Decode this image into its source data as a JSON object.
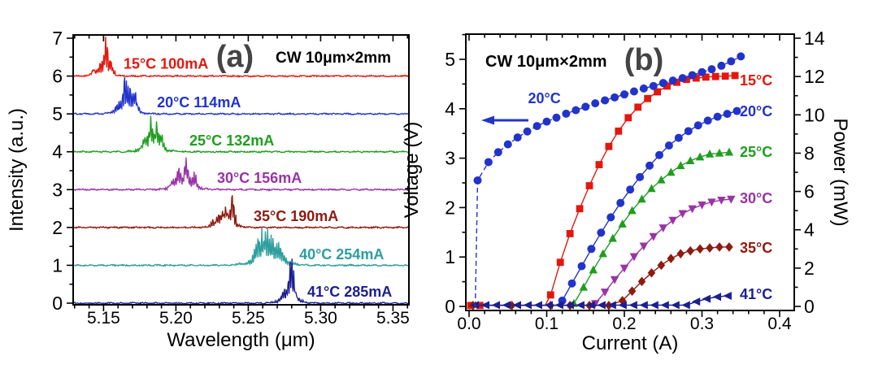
{
  "chart_data": [
    {
      "id": "a",
      "type": "line",
      "tag": "(a)",
      "annotation": "CW  10μm×2mm",
      "xlabel": "Wavelength (μm)",
      "ylabel": "Intensity (a.u.)",
      "xlim": [
        5.129,
        5.361
      ],
      "ylim": [
        0,
        7.08
      ],
      "xticks": [
        5.15,
        5.2,
        5.25,
        5.3,
        5.35
      ],
      "xtick_labels": [
        "5.15",
        "5.20",
        "5.25",
        "5.30",
        "5.35"
      ],
      "yticks": [
        0,
        1,
        2,
        3,
        4,
        5,
        6,
        7
      ],
      "x_minor_step": 0.01,
      "y_minor_step": 0.5,
      "grid": false,
      "series": [
        {
          "name": "15C-100mA",
          "label": "15°C  100mA",
          "color": "#e3170d",
          "offset": 6,
          "label_pos": [
            5.1638,
            6.2
          ],
          "peaks": [
            {
              "c": 5.1515,
              "w": 0.0012,
              "h": 1.02
            },
            {
              "c": 5.1478,
              "w": 0.0017,
              "h": 0.3
            },
            {
              "c": 5.143,
              "w": 0.0014,
              "h": 0.16
            },
            {
              "c": 5.155,
              "w": 0.0013,
              "h": 0.38
            }
          ],
          "pedestal": {
            "c": 5.1512,
            "w": 0.0055,
            "h": 0.14
          }
        },
        {
          "name": "20C-114mA",
          "label": "20°C  114mA",
          "color": "#2233cc",
          "offset": 5,
          "label_pos": [
            5.1869,
            5.17
          ],
          "peaks": [
            {
              "c": 5.1645,
              "w": 0.0014,
              "h": 0.97
            },
            {
              "c": 5.1685,
              "w": 0.0017,
              "h": 0.62
            },
            {
              "c": 5.1718,
              "w": 0.0015,
              "h": 0.45
            },
            {
              "c": 5.1595,
              "w": 0.0016,
              "h": 0.22
            }
          ],
          "pedestal": {
            "c": 5.166,
            "w": 0.0075,
            "h": 0.18
          }
        },
        {
          "name": "25C-132mA",
          "label": "25°C  132mA",
          "color": "#1e9e1e",
          "offset": 4,
          "label_pos": [
            5.2093,
            4.17
          ],
          "peaks": [
            {
              "c": 5.1825,
              "w": 0.0014,
              "h": 0.95
            },
            {
              "c": 5.187,
              "w": 0.0017,
              "h": 0.62
            },
            {
              "c": 5.178,
              "w": 0.0016,
              "h": 0.28
            },
            {
              "c": 5.1902,
              "w": 0.0014,
              "h": 0.3
            }
          ],
          "pedestal": {
            "c": 5.184,
            "w": 0.0075,
            "h": 0.2
          }
        },
        {
          "name": "30C-156mA",
          "label": "30°C 156mA",
          "color": "#9933a6",
          "offset": 3,
          "label_pos": [
            5.2284,
            3.18
          ],
          "peaks": [
            {
              "c": 5.207,
              "w": 0.0014,
              "h": 0.85
            },
            {
              "c": 5.2018,
              "w": 0.0019,
              "h": 0.5
            },
            {
              "c": 5.2125,
              "w": 0.0016,
              "h": 0.38
            },
            {
              "c": 5.1975,
              "w": 0.0016,
              "h": 0.2
            }
          ],
          "pedestal": {
            "c": 5.2065,
            "w": 0.009,
            "h": 0.17
          }
        },
        {
          "name": "35C-190mA",
          "label": "35°C  190mA",
          "color": "#8e1a10",
          "offset": 2,
          "label_pos": [
            5.2537,
            2.17
          ],
          "peaks": [
            {
              "c": 5.2388,
              "w": 0.0012,
              "h": 0.85
            },
            {
              "c": 5.234,
              "w": 0.0015,
              "h": 0.55
            },
            {
              "c": 5.2298,
              "w": 0.0016,
              "h": 0.32
            },
            {
              "c": 5.2258,
              "w": 0.0015,
              "h": 0.18
            }
          ],
          "pedestal": {
            "c": 5.2355,
            "w": 0.007,
            "h": 0.15
          }
        },
        {
          "name": "40C-254mA",
          "label": "40°C  254mA",
          "color": "#2e9e9e",
          "offset": 1,
          "label_pos": [
            5.2852,
            1.16
          ],
          "peaks": [
            {
              "c": 5.2618,
              "w": 0.0021,
              "h": 0.9
            },
            {
              "c": 5.2568,
              "w": 0.0021,
              "h": 0.65
            },
            {
              "c": 5.267,
              "w": 0.0023,
              "h": 0.6
            },
            {
              "c": 5.2722,
              "w": 0.0021,
              "h": 0.35
            }
          ],
          "pedestal": {
            "c": 5.2635,
            "w": 0.0115,
            "h": 0.28
          }
        },
        {
          "name": "41C-285mA",
          "label": "41°C  285mA",
          "color": "#1c1f8f",
          "offset": 0,
          "label_pos": [
            5.2908,
            0.17
          ],
          "peaks": [
            {
              "c": 5.2788,
              "w": 0.0012,
              "h": 0.92
            },
            {
              "c": 5.2802,
              "w": 0.0012,
              "h": 0.7
            },
            {
              "c": 5.2748,
              "w": 0.0016,
              "h": 0.38
            },
            {
              "c": 5.2822,
              "w": 0.0016,
              "h": 0.3
            }
          ],
          "pedestal": {
            "c": 5.2785,
            "w": 0.007,
            "h": 0.18
          }
        }
      ]
    },
    {
      "id": "b",
      "type": "scatter-line",
      "tag": "(b)",
      "annotation": "CW  10μm×2mm",
      "xlabel": "Current (A)",
      "ylabel_left": "Voltage (V)",
      "ylabel_right": "Power (mW)",
      "xlim": [
        -0.004,
        0.419
      ],
      "xticks": [
        0,
        0.1,
        0.2,
        0.3,
        0.4
      ],
      "xtick_labels": [
        "0.0",
        "0.1",
        "0.2",
        "0.3",
        "0.4"
      ],
      "x_minor_step": 0.02,
      "ylim_left": [
        -0.08,
        5.51
      ],
      "yticks_left": [
        0,
        1,
        2,
        3,
        4,
        5
      ],
      "y_left_minor_step": 0.5,
      "ylim_right": [
        -0.2,
        14.2
      ],
      "yticks_right": [
        0,
        2,
        4,
        6,
        8,
        10,
        12,
        14
      ],
      "y_right_minor_step": 1,
      "voltage_series": {
        "name": "20C-voltage",
        "axis": "left",
        "color": "#2233cc",
        "marker": "circle",
        "dashed": true,
        "x": [
          0.008,
          0.011,
          0.025,
          0.0375,
          0.05,
          0.0625,
          0.075,
          0.0875,
          0.1,
          0.1125,
          0.125,
          0.1375,
          0.15,
          0.1625,
          0.175,
          0.1875,
          0.2,
          0.2125,
          0.225,
          0.2375,
          0.25,
          0.2625,
          0.275,
          0.2875,
          0.3,
          0.3125,
          0.325,
          0.3375,
          0.35
        ],
        "y": [
          0.0,
          2.55,
          2.92,
          3.12,
          3.28,
          3.42,
          3.54,
          3.65,
          3.74,
          3.82,
          3.9,
          3.97,
          4.04,
          4.11,
          4.17,
          4.23,
          4.29,
          4.35,
          4.41,
          4.46,
          4.52,
          4.57,
          4.62,
          4.68,
          4.74,
          4.8,
          4.87,
          4.96,
          5.06
        ],
        "label": {
          "text": "20°C",
          "x": 0.097,
          "v": 4.11
        },
        "arrow": {
          "x_tail": 0.0764,
          "x_tip": 0.0157,
          "v": 3.766
        }
      },
      "power_series": [
        {
          "name": "15C",
          "color": "#e3170d",
          "marker": "square",
          "marker_hide": [
            2,
            3,
            4
          ],
          "x": [
            0.002,
            0.014,
            0.05,
            0.08,
            0.098,
            0.105,
            0.1175,
            0.13,
            0.1425,
            0.155,
            0.1675,
            0.18,
            0.1925,
            0.205,
            0.2175,
            0.23,
            0.2425,
            0.255,
            0.2675,
            0.28,
            0.2925,
            0.305,
            0.3175,
            0.33,
            0.3425
          ],
          "y": [
            0.05,
            0.05,
            0.05,
            0.05,
            0.05,
            0.6,
            2.3,
            3.8,
            5.1,
            6.3,
            7.4,
            8.35,
            9.15,
            9.85,
            10.4,
            10.85,
            11.2,
            11.5,
            11.7,
            11.85,
            11.92,
            11.97,
            12.0,
            12.02,
            12.05
          ],
          "label": {
            "text": "15°C",
            "x": 0.3487,
            "p": 11.54
          }
        },
        {
          "name": "20C",
          "color": "#2233cc",
          "marker": "circle",
          "x": [
            0.12,
            0.1325,
            0.145,
            0.1575,
            0.17,
            0.1825,
            0.195,
            0.2075,
            0.22,
            0.2325,
            0.245,
            0.2575,
            0.27,
            0.2825,
            0.295,
            0.3075,
            0.32,
            0.3325,
            0.345
          ],
          "y": [
            0.3,
            1.2,
            2.1,
            3.0,
            3.85,
            4.65,
            5.4,
            6.1,
            6.75,
            7.35,
            7.9,
            8.4,
            8.8,
            9.15,
            9.45,
            9.7,
            9.9,
            10.05,
            10.2
          ],
          "label": {
            "text": "20°C",
            "x": 0.3487,
            "p": 9.93
          }
        },
        {
          "name": "25C",
          "color": "#1e9e1e",
          "marker": "triangle-up",
          "x": [
            0.135,
            0.1475,
            0.16,
            0.1725,
            0.185,
            0.1975,
            0.21,
            0.2225,
            0.235,
            0.2475,
            0.26,
            0.2725,
            0.285,
            0.2975,
            0.31,
            0.3225,
            0.335
          ],
          "y": [
            0.15,
            1.0,
            1.9,
            2.75,
            3.55,
            4.3,
            5.0,
            5.6,
            6.15,
            6.6,
            7.0,
            7.35,
            7.6,
            7.8,
            7.95,
            8.0,
            8.05
          ],
          "label": {
            "text": "25°C",
            "x": 0.3487,
            "p": 7.81
          }
        },
        {
          "name": "30C",
          "color": "#9933a6",
          "marker": "triangle-down",
          "x": [
            0.1625,
            0.175,
            0.1875,
            0.2,
            0.2125,
            0.225,
            0.2375,
            0.25,
            0.2625,
            0.275,
            0.2875,
            0.3,
            0.3125,
            0.325,
            0.3375
          ],
          "y": [
            0.15,
            0.75,
            1.4,
            2.0,
            2.6,
            3.15,
            3.65,
            4.1,
            4.5,
            4.85,
            5.1,
            5.3,
            5.45,
            5.55,
            5.6
          ],
          "label": {
            "text": "30°C",
            "x": 0.3487,
            "p": 5.39
          }
        },
        {
          "name": "35C",
          "color": "#8e1a10",
          "marker": "diamond",
          "x": [
            0.005,
            0.055,
            0.105,
            0.13,
            0.155,
            0.18,
            0.1975,
            0.21,
            0.2225,
            0.235,
            0.2475,
            0.26,
            0.2725,
            0.285,
            0.2975,
            0.31,
            0.3225,
            0.335
          ],
          "y": [
            0.05,
            0.05,
            0.05,
            0.05,
            0.05,
            0.05,
            0.3,
            0.8,
            1.3,
            1.75,
            2.15,
            2.5,
            2.75,
            2.9,
            3.0,
            3.05,
            3.1,
            3.1
          ],
          "label": {
            "text": "35°C",
            "x": 0.3487,
            "p": 2.8
          }
        },
        {
          "name": "41C",
          "color": "#1c1f8f",
          "marker": "triangle-left",
          "x": [
            0.008,
            0.0216,
            0.0352,
            0.0488,
            0.0624,
            0.076,
            0.0896,
            0.1032,
            0.1168,
            0.1304,
            0.144,
            0.1576,
            0.1712,
            0.1848,
            0.1984,
            0.212,
            0.2256,
            0.2392,
            0.2528,
            0.2664,
            0.28,
            0.293,
            0.3065,
            0.32,
            0.3335
          ],
          "y": [
            0.07,
            0.07,
            0.07,
            0.07,
            0.07,
            0.07,
            0.07,
            0.07,
            0.07,
            0.07,
            0.07,
            0.07,
            0.07,
            0.07,
            0.07,
            0.07,
            0.07,
            0.07,
            0.07,
            0.07,
            0.07,
            0.25,
            0.4,
            0.5,
            0.55
          ],
          "label": {
            "text": "41°C",
            "x": 0.3487,
            "p": 0.38
          }
        }
      ]
    }
  ]
}
